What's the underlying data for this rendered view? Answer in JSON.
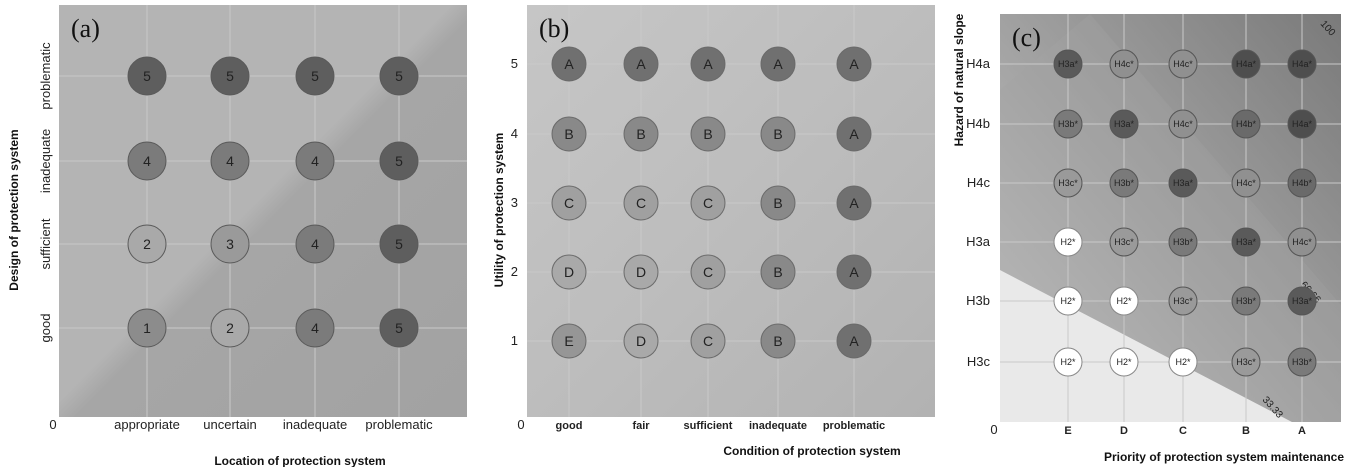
{
  "chart_data": [
    {
      "type": "scatter",
      "panel_label": "(a)",
      "xlabel": "Location of protection system",
      "ylabel": "Design of protection system",
      "origin_label": "0",
      "x_categories": [
        "appropriate",
        "uncertain",
        "inadequate",
        "problematic"
      ],
      "y_categories": [
        "good",
        "sufficient",
        "inadequate",
        "problematic"
      ],
      "grid": true,
      "cells": [
        [
          "1",
          "2",
          "4",
          "5"
        ],
        [
          "2",
          "3",
          "4",
          "5"
        ],
        [
          "4",
          "4",
          "4",
          "5"
        ],
        [
          "5",
          "5",
          "5",
          "5"
        ]
      ]
    },
    {
      "type": "scatter",
      "panel_label": "(b)",
      "xlabel": "Condition of protection system",
      "ylabel": "Utility of protection system",
      "origin_label": "0",
      "x_categories": [
        "good",
        "fair",
        "sufficient",
        "inadequate",
        "problematic"
      ],
      "y_ticks": [
        "1",
        "2",
        "3",
        "4",
        "5"
      ],
      "grid": true,
      "cells": [
        [
          "E",
          "D",
          "C",
          "B",
          "A"
        ],
        [
          "D",
          "D",
          "C",
          "B",
          "A"
        ],
        [
          "C",
          "C",
          "C",
          "B",
          "A"
        ],
        [
          "B",
          "B",
          "B",
          "B",
          "A"
        ],
        [
          "A",
          "A",
          "A",
          "A",
          "A"
        ]
      ]
    },
    {
      "type": "scatter",
      "panel_label": "(c)",
      "xlabel": "Priority of protection system maintenance",
      "ylabel": "Hazard of natural slope",
      "origin_label": "0",
      "x_categories": [
        "E",
        "D",
        "C",
        "B",
        "A"
      ],
      "y_categories": [
        "H3c",
        "H3b",
        "H3a",
        "H4c",
        "H4b",
        "H4a"
      ],
      "grid": true,
      "isolines": [
        "33.33",
        "66.66",
        "100"
      ],
      "cells": [
        [
          "H2*",
          "H2*",
          "H2*",
          "H3c*",
          "H3b*"
        ],
        [
          "H2*",
          "H2*",
          "H3c*",
          "H3b*",
          "H3a*"
        ],
        [
          "H2*",
          "H3c*",
          "H3b*",
          "H3a*",
          "H4c*"
        ],
        [
          "H3c*",
          "H3b*",
          "H3a*",
          "H4c*",
          "H4b*"
        ],
        [
          "H3b*",
          "H3a*",
          "H4c*",
          "H4b*",
          "H4a*"
        ],
        [
          "H3a*",
          "H4c*",
          "H4c*",
          "H4a*",
          "H4a*"
        ]
      ]
    }
  ],
  "colors": {
    "5": "#5e5e5e",
    "4": "#7b7b7b",
    "3": "#9a9a9a",
    "2": "#a9a9a9",
    "1": "#8c8c8c",
    "A": "#707070",
    "B": "#898989",
    "C": "#a0a0a0",
    "D": "#a9a9a9",
    "E": "#969696",
    "H4a*": "#4e4e4e",
    "H4b*": "#6a6a6a",
    "H4c*": "#909090",
    "H3a*": "#5a5a5a",
    "H3b*": "#7a7a7a",
    "H3c*": "#9a9a9a",
    "H2*": "#ffffff"
  }
}
